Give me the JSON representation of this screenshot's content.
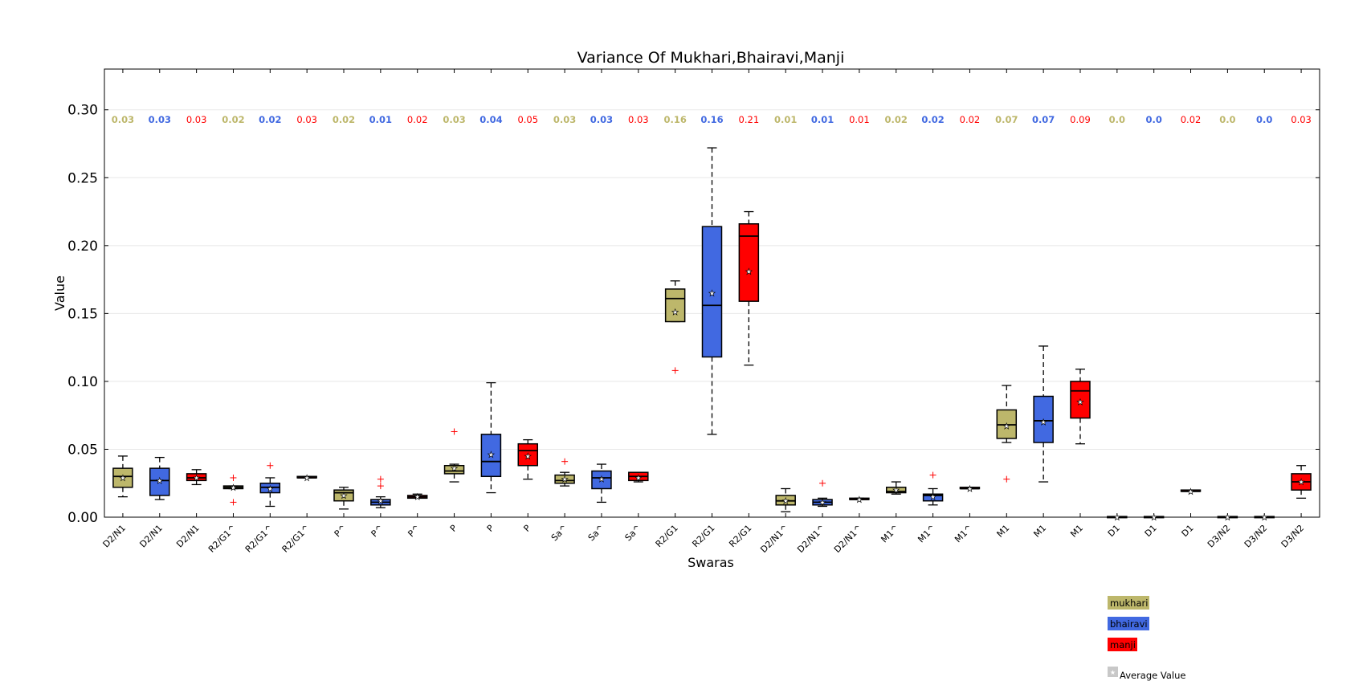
{
  "chart_data": {
    "type": "box",
    "title": "Variance Of Mukhari,Bhairavi,Manji",
    "xlabel": "Swaras",
    "ylabel": "Value",
    "ylim": [
      0,
      0.33
    ],
    "yticks": [
      "0.00",
      "0.05",
      "0.10",
      "0.15",
      "0.20",
      "0.25",
      "0.30"
    ],
    "ytick_values": [
      0,
      0.05,
      0.1,
      0.15,
      0.2,
      0.25,
      0.3
    ],
    "grid": "horizontal",
    "legend_position": "bottom-right",
    "series": [
      {
        "name": "mukhari",
        "color": "#bdb76b"
      },
      {
        "name": "bhairavi",
        "color": "#4169e1"
      },
      {
        "name": "manji",
        "color": "#ff0000"
      }
    ],
    "average_label": "Average Value",
    "categories": [
      "D2/N1",
      "D2/N1",
      "D2/N1",
      "R2/G1^",
      "R2/G1^",
      "R2/G1^",
      "P^",
      "P^",
      "P^",
      "P",
      "P",
      "P",
      "Sa^",
      "Sa^",
      "Sa^",
      "R2/G1",
      "R2/G1",
      "R2/G1",
      "D2/N1^",
      "D2/N1^",
      "D2/N1^",
      "M1^",
      "M1^",
      "M1^",
      "M1",
      "M1",
      "M1",
      "D1",
      "D1",
      "D1",
      "D3/N2",
      "D3/N2",
      "D3/N2"
    ],
    "boxes": [
      {
        "series": 0,
        "whislo": 0.015,
        "q1": 0.022,
        "median": 0.03,
        "q3": 0.036,
        "whishi": 0.045,
        "mean": 0.029,
        "fliers": [],
        "label": "0.03"
      },
      {
        "series": 1,
        "whislo": 0.013,
        "q1": 0.016,
        "median": 0.027,
        "q3": 0.036,
        "whishi": 0.044,
        "mean": 0.027,
        "fliers": [],
        "label": "0.03"
      },
      {
        "series": 2,
        "whislo": 0.024,
        "q1": 0.027,
        "median": 0.029,
        "q3": 0.032,
        "whishi": 0.035,
        "mean": 0.029,
        "fliers": [],
        "label": "0.03"
      },
      {
        "series": 0,
        "whislo": 0.021,
        "q1": 0.021,
        "median": 0.022,
        "q3": 0.023,
        "whishi": 0.023,
        "mean": 0.022,
        "fliers": [
          0.029,
          0.011
        ],
        "label": "0.02"
      },
      {
        "series": 1,
        "whislo": 0.008,
        "q1": 0.018,
        "median": 0.022,
        "q3": 0.025,
        "whishi": 0.029,
        "mean": 0.021,
        "fliers": [
          0.038
        ],
        "label": "0.02"
      },
      {
        "series": 2,
        "whislo": 0.029,
        "q1": 0.029,
        "median": 0.029,
        "q3": 0.03,
        "whishi": 0.03,
        "mean": 0.029,
        "fliers": [],
        "label": "0.03"
      },
      {
        "series": 0,
        "whislo": 0.006,
        "q1": 0.012,
        "median": 0.018,
        "q3": 0.02,
        "whishi": 0.022,
        "mean": 0.016,
        "fliers": [],
        "label": "0.02"
      },
      {
        "series": 1,
        "whislo": 0.007,
        "q1": 0.009,
        "median": 0.011,
        "q3": 0.013,
        "whishi": 0.015,
        "mean": 0.012,
        "fliers": [
          0.028,
          0.023
        ],
        "label": "0.01"
      },
      {
        "series": 2,
        "whislo": 0.014,
        "q1": 0.014,
        "median": 0.015,
        "q3": 0.016,
        "whishi": 0.017,
        "mean": 0.015,
        "fliers": [],
        "label": "0.02"
      },
      {
        "series": 0,
        "whislo": 0.026,
        "q1": 0.032,
        "median": 0.034,
        "q3": 0.038,
        "whishi": 0.039,
        "mean": 0.036,
        "fliers": [
          0.063
        ],
        "label": "0.03"
      },
      {
        "series": 1,
        "whislo": 0.018,
        "q1": 0.03,
        "median": 0.041,
        "q3": 0.061,
        "whishi": 0.099,
        "mean": 0.046,
        "fliers": [],
        "label": "0.04"
      },
      {
        "series": 2,
        "whislo": 0.028,
        "q1": 0.038,
        "median": 0.049,
        "q3": 0.054,
        "whishi": 0.057,
        "mean": 0.045,
        "fliers": [],
        "label": "0.05"
      },
      {
        "series": 0,
        "whislo": 0.023,
        "q1": 0.025,
        "median": 0.027,
        "q3": 0.031,
        "whishi": 0.033,
        "mean": 0.028,
        "fliers": [
          0.041
        ],
        "label": "0.03"
      },
      {
        "series": 1,
        "whislo": 0.011,
        "q1": 0.021,
        "median": 0.029,
        "q3": 0.034,
        "whishi": 0.039,
        "mean": 0.028,
        "fliers": [],
        "label": "0.03"
      },
      {
        "series": 2,
        "whislo": 0.026,
        "q1": 0.027,
        "median": 0.03,
        "q3": 0.033,
        "whishi": 0.033,
        "mean": 0.029,
        "fliers": [],
        "label": "0.03"
      },
      {
        "series": 0,
        "whislo": 0.144,
        "q1": 0.144,
        "median": 0.161,
        "q3": 0.168,
        "whishi": 0.174,
        "mean": 0.151,
        "fliers": [
          0.108
        ],
        "label": "0.16"
      },
      {
        "series": 1,
        "whislo": 0.061,
        "q1": 0.118,
        "median": 0.156,
        "q3": 0.214,
        "whishi": 0.272,
        "mean": 0.165,
        "fliers": [],
        "label": "0.16"
      },
      {
        "series": 2,
        "whislo": 0.112,
        "q1": 0.159,
        "median": 0.207,
        "q3": 0.216,
        "whishi": 0.225,
        "mean": 0.181,
        "fliers": [],
        "label": "0.21"
      },
      {
        "series": 0,
        "whislo": 0.004,
        "q1": 0.009,
        "median": 0.012,
        "q3": 0.016,
        "whishi": 0.021,
        "mean": 0.012,
        "fliers": [],
        "label": "0.01"
      },
      {
        "series": 1,
        "whislo": 0.008,
        "q1": 0.009,
        "median": 0.011,
        "q3": 0.013,
        "whishi": 0.014,
        "mean": 0.011,
        "fliers": [
          0.025
        ],
        "label": "0.01"
      },
      {
        "series": 2,
        "whislo": 0.013,
        "q1": 0.013,
        "median": 0.013,
        "q3": 0.014,
        "whishi": 0.014,
        "mean": 0.013,
        "fliers": [],
        "label": "0.01"
      },
      {
        "series": 0,
        "whislo": 0.017,
        "q1": 0.018,
        "median": 0.019,
        "q3": 0.022,
        "whishi": 0.026,
        "mean": 0.02,
        "fliers": [],
        "label": "0.02"
      },
      {
        "series": 1,
        "whislo": 0.009,
        "q1": 0.012,
        "median": 0.016,
        "q3": 0.017,
        "whishi": 0.021,
        "mean": 0.015,
        "fliers": [
          0.031
        ],
        "label": "0.02"
      },
      {
        "series": 2,
        "whislo": 0.021,
        "q1": 0.021,
        "median": 0.021,
        "q3": 0.022,
        "whishi": 0.022,
        "mean": 0.021,
        "fliers": [],
        "label": "0.02"
      },
      {
        "series": 0,
        "whislo": 0.055,
        "q1": 0.058,
        "median": 0.068,
        "q3": 0.079,
        "whishi": 0.097,
        "mean": 0.067,
        "fliers": [
          0.028
        ],
        "label": "0.07"
      },
      {
        "series": 1,
        "whislo": 0.026,
        "q1": 0.055,
        "median": 0.071,
        "q3": 0.089,
        "whishi": 0.126,
        "mean": 0.07,
        "fliers": [],
        "label": "0.07"
      },
      {
        "series": 2,
        "whislo": 0.054,
        "q1": 0.073,
        "median": 0.093,
        "q3": 0.1,
        "whishi": 0.109,
        "mean": 0.085,
        "fliers": [],
        "label": "0.09"
      },
      {
        "series": 0,
        "whislo": 0.0,
        "q1": 0.0,
        "median": 0.0,
        "q3": 0.0005,
        "whishi": 0.0005,
        "mean": 0.0,
        "fliers": [],
        "label": "0.0"
      },
      {
        "series": 1,
        "whislo": 0.0,
        "q1": 0.0,
        "median": 0.0,
        "q3": 0.0005,
        "whishi": 0.0005,
        "mean": 0.0,
        "fliers": [],
        "label": "0.0"
      },
      {
        "series": 2,
        "whislo": 0.019,
        "q1": 0.019,
        "median": 0.019,
        "q3": 0.02,
        "whishi": 0.02,
        "mean": 0.019,
        "fliers": [],
        "label": "0.02"
      },
      {
        "series": 0,
        "whislo": 0.0,
        "q1": 0.0,
        "median": 0.0,
        "q3": 0.0005,
        "whishi": 0.0005,
        "mean": 0.0,
        "fliers": [],
        "label": "0.0"
      },
      {
        "series": 1,
        "whislo": 0.0,
        "q1": 0.0,
        "median": 0.0,
        "q3": 0.0005,
        "whishi": 0.0005,
        "mean": 0.0,
        "fliers": [],
        "label": "0.0"
      },
      {
        "series": 2,
        "whislo": 0.014,
        "q1": 0.02,
        "median": 0.026,
        "q3": 0.032,
        "whishi": 0.038,
        "mean": 0.026,
        "fliers": [],
        "label": "0.03"
      }
    ]
  }
}
